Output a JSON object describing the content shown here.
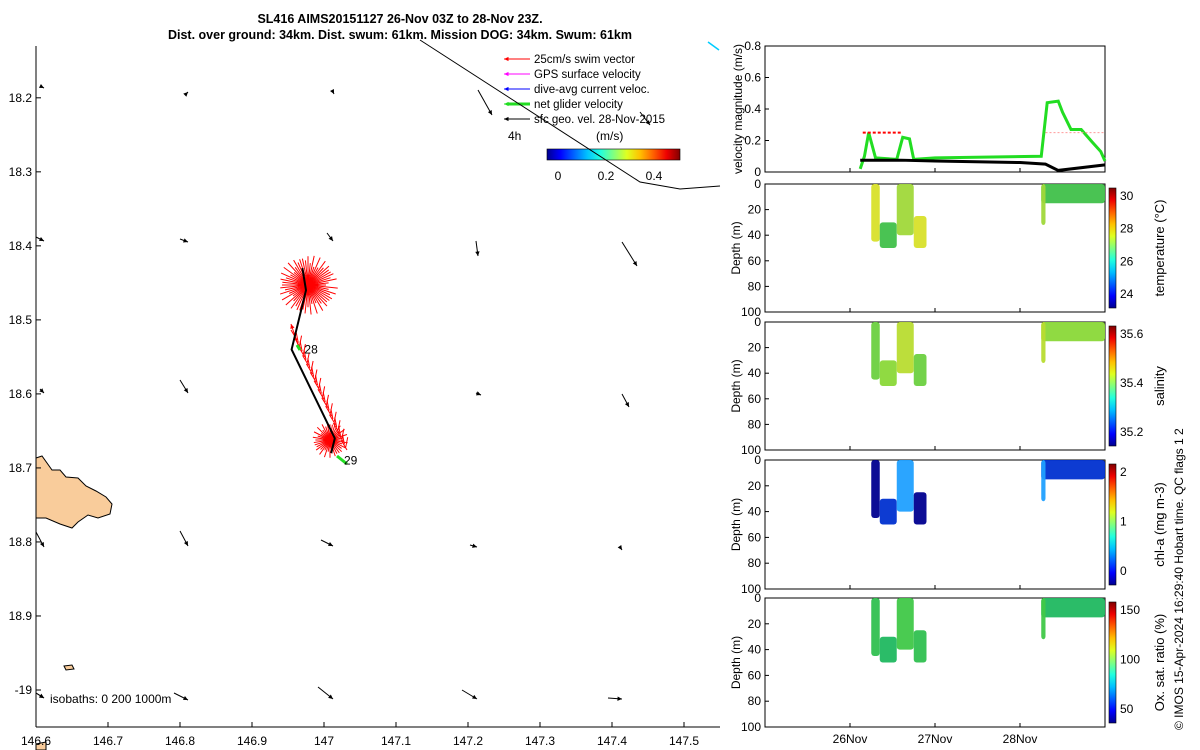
{
  "title_line1": "SL416 AIMS20151127 26-Nov 03Z to 28-Nov 23Z.",
  "title_line2": "Dist. over ground: 34km. Dist. swum: 61km. Mission DOG: 34km. Swum: 61km",
  "copyright": "© IMOS 15-Apr-2024 16:29:40 Hobart time. QC flags 1  2",
  "colors": {
    "swim_vector": "#ff0000",
    "gps_velocity": "#ff00ff",
    "dive_current": "#0000ff",
    "net_velocity": "#22dd22",
    "geo_velocity": "#000000",
    "land": "#f9cc9b"
  },
  "chart_data": [
    {
      "type": "map",
      "name": "track_map",
      "xlim": [
        146.6,
        147.55
      ],
      "ylim": [
        -19.05,
        -18.13
      ],
      "x_ticks": [
        "146.6",
        "146.7",
        "146.8",
        "146.9",
        "147",
        "147.1",
        "147.2",
        "147.3",
        "147.4",
        "147.5"
      ],
      "y_ticks": [
        "18.2",
        "18.3",
        "18.4",
        "18.5",
        "18.6",
        "18.7",
        "18.8",
        "18.9",
        "-19"
      ],
      "legend": [
        "25cm/s swim vector",
        "GPS surface velocity",
        "dive-avg current veloc.",
        "net glider velocity",
        "sfc geo. vel. 28-Nov-2015"
      ],
      "legend_scale_label": "4h",
      "colorbar_label": "(m/s)",
      "colorbar_ticks": [
        "0",
        "0.2",
        "0.4"
      ],
      "isobaths_label": "isobaths: 0   200  1000m",
      "track": [
        {
          "lon": 146.97,
          "lat": -18.43
        },
        {
          "lon": 146.975,
          "lat": -18.46
        },
        {
          "lon": 146.955,
          "lat": -18.54
        },
        {
          "lon": 146.975,
          "lat": -18.58
        },
        {
          "lon": 146.995,
          "lat": -18.62
        },
        {
          "lon": 147.015,
          "lat": -18.66
        },
        {
          "lon": 147.01,
          "lat": -18.68
        }
      ],
      "day_labels": [
        {
          "text": "28",
          "lon": 146.97,
          "lat": -18.54
        },
        {
          "text": "29",
          "lon": 147.025,
          "lat": -18.69
        }
      ]
    },
    {
      "type": "line",
      "name": "velocity_magnitude",
      "ylabel": "velocity magnitude (m/s)",
      "ylim": [
        0,
        0.8
      ],
      "y_ticks": [
        "0",
        "0.2",
        "0.4",
        "0.6",
        "0.8"
      ],
      "series": [
        {
          "name": "net glider velocity",
          "x": [
            26.12,
            26.17,
            26.22,
            26.3,
            26.55,
            26.62,
            26.7,
            26.75,
            27.0,
            28.25,
            28.32,
            28.45,
            28.5,
            28.6,
            28.72,
            28.85,
            28.95,
            29.0
          ],
          "y": [
            0.02,
            0.1,
            0.25,
            0.09,
            0.08,
            0.22,
            0.21,
            0.08,
            0.09,
            0.1,
            0.44,
            0.45,
            0.38,
            0.27,
            0.27,
            0.19,
            0.13,
            0.07
          ]
        },
        {
          "name": "sfc geo. vel. 28-Nov-2015",
          "x": [
            26.12,
            26.6,
            27.0,
            28.0,
            28.3,
            28.45,
            29.0
          ],
          "y": [
            0.075,
            0.075,
            0.07,
            0.06,
            0.05,
            0.01,
            0.045
          ]
        }
      ]
    },
    {
      "type": "scatter",
      "name": "temperature",
      "ylabel": "Depth (m)",
      "colorbar_label": "temperature (°C)",
      "colorbar_ticks": [
        "24",
        "26",
        "28",
        "30"
      ],
      "ylim": [
        100,
        0
      ],
      "y_ticks": [
        "0",
        "20",
        "40",
        "60",
        "80",
        "100"
      ]
    },
    {
      "type": "scatter",
      "name": "salinity",
      "ylabel": "Depth (m)",
      "colorbar_label": "salinity",
      "colorbar_ticks": [
        "35.2",
        "35.4",
        "35.6"
      ],
      "ylim": [
        100,
        0
      ],
      "y_ticks": [
        "0",
        "20",
        "40",
        "60",
        "80",
        "100"
      ]
    },
    {
      "type": "scatter",
      "name": "chla",
      "ylabel": "Depth (m)",
      "colorbar_label": "chl-a (mg m-3)",
      "colorbar_ticks": [
        "0",
        "1",
        "2"
      ],
      "ylim": [
        100,
        0
      ],
      "y_ticks": [
        "0",
        "20",
        "40",
        "60",
        "80",
        "100"
      ]
    },
    {
      "type": "scatter",
      "name": "oxygen",
      "ylabel": "Depth (m)",
      "colorbar_label": "Ox. sat. ratio (%)",
      "colorbar_ticks": [
        "50",
        "100",
        "150"
      ],
      "ylim": [
        100,
        0
      ],
      "y_ticks": [
        "0",
        "20",
        "40",
        "60",
        "80",
        "100"
      ]
    }
  ],
  "time_axis": {
    "ticks": [
      {
        "label": "26Nov",
        "day": 26
      },
      {
        "label": "27Nov",
        "day": 27
      },
      {
        "label": "28Nov",
        "day": 28
      }
    ]
  }
}
